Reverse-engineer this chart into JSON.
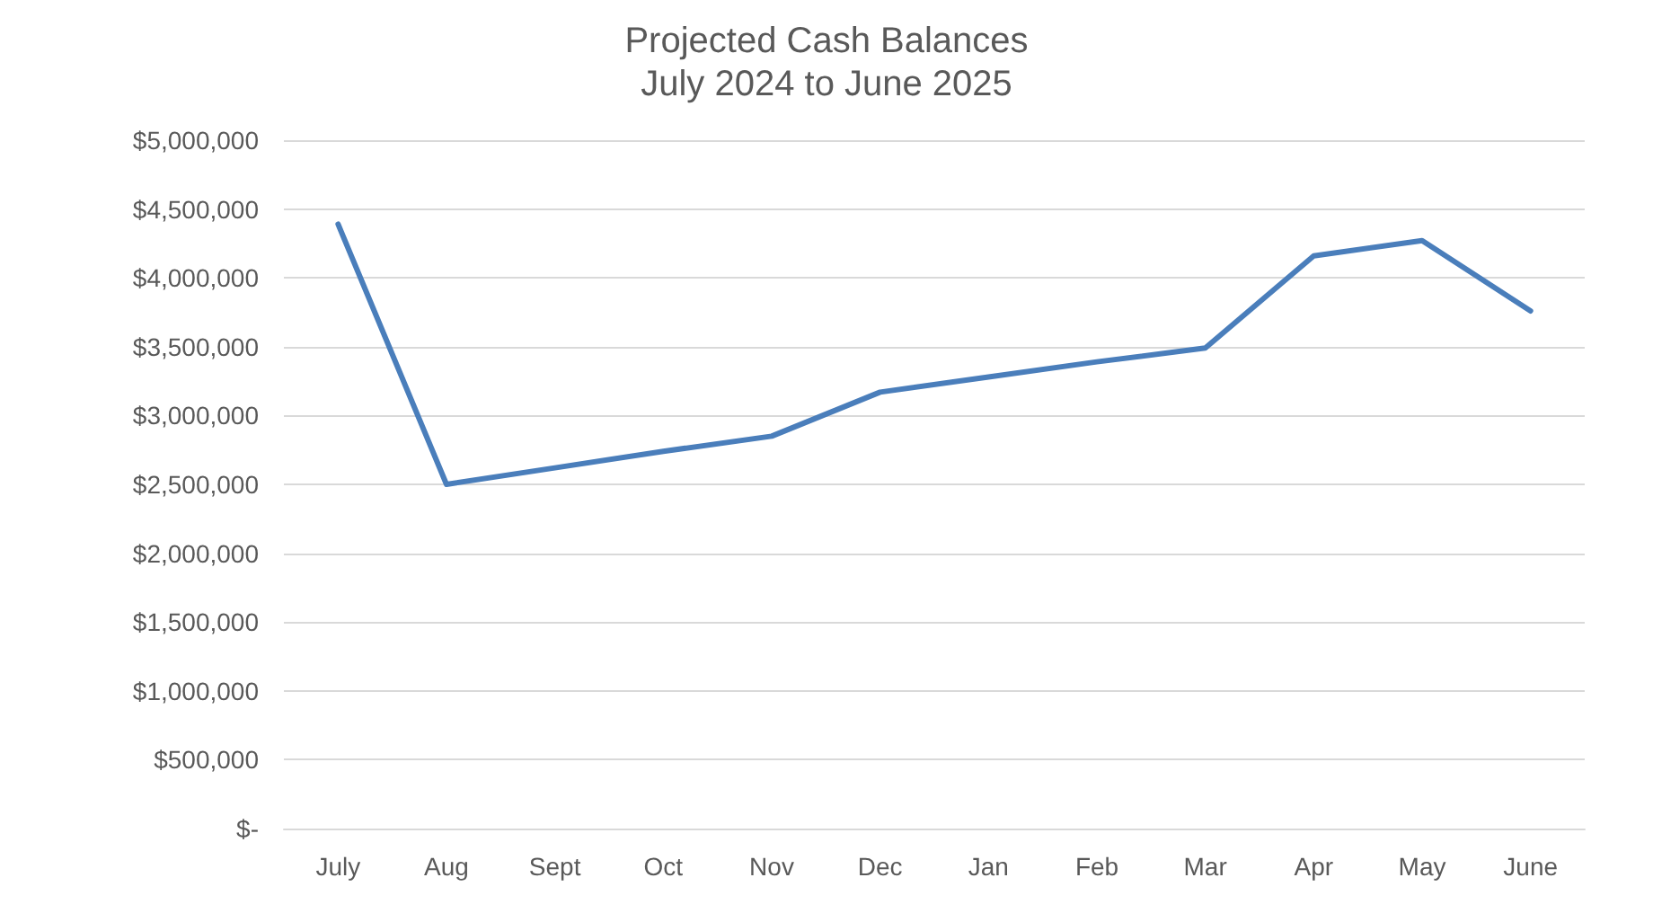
{
  "chart_data": {
    "type": "line",
    "title": "Projected Cash Balances",
    "subtitle": "July 2024 to June 2025",
    "categories": [
      "July",
      "Aug",
      "Sept",
      "Oct",
      "Nov",
      "Dec",
      "Jan",
      "Feb",
      "Mar",
      "Apr",
      "May",
      "June"
    ],
    "series": [
      {
        "color": "#4a7ebb",
        "values": [
          4390000,
          2500000,
          2620000,
          2740000,
          2850000,
          3170000,
          3280000,
          3390000,
          3490000,
          4160000,
          4270000,
          3760000
        ]
      }
    ],
    "ylim": [
      0,
      5000000
    ],
    "yticks": [
      {
        "value": 0,
        "label": "$-"
      },
      {
        "value": 500000,
        "label": "$500,000"
      },
      {
        "value": 1000000,
        "label": "$1,000,000"
      },
      {
        "value": 1500000,
        "label": "$1,500,000"
      },
      {
        "value": 2000000,
        "label": "$2,000,000"
      },
      {
        "value": 2500000,
        "label": "$2,500,000"
      },
      {
        "value": 3000000,
        "label": "$3,000,000"
      },
      {
        "value": 3500000,
        "label": "$3,500,000"
      },
      {
        "value": 4000000,
        "label": "$4,000,000"
      },
      {
        "value": 4500000,
        "label": "$4,500,000"
      },
      {
        "value": 5000000,
        "label": "$5,000,000"
      }
    ],
    "grid": "y",
    "marker": "none",
    "line_style": "solid"
  }
}
